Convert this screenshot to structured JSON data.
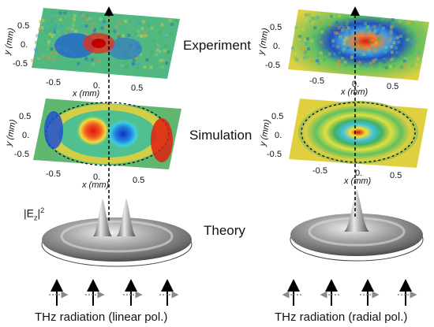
{
  "figure": {
    "row_labels": [
      "Experiment",
      "Simulation",
      "Theory"
    ],
    "theory_quantity": {
      "base": "|E",
      "subscript": "z",
      "close": "|",
      "superscript": "2"
    },
    "captions": {
      "left": "THz radiation (linear pol.)",
      "right": "THz radiation (radial pol.)"
    },
    "axis": {
      "x_label": "x (mm)",
      "y_label": "y (mm)",
      "ticks": [
        "-0.5",
        "0.",
        "0.5"
      ]
    },
    "columns": [
      {
        "name": "linear",
        "field_pattern": "two-lobe",
        "polarization_arrows": "horizontal"
      },
      {
        "name": "radial",
        "field_pattern": "central-peak",
        "polarization_arrows": "radial"
      }
    ],
    "colors": {
      "hot": "#e01010",
      "warm": "#f0e020",
      "mid": "#40c070",
      "cold": "#1040d0"
    }
  }
}
